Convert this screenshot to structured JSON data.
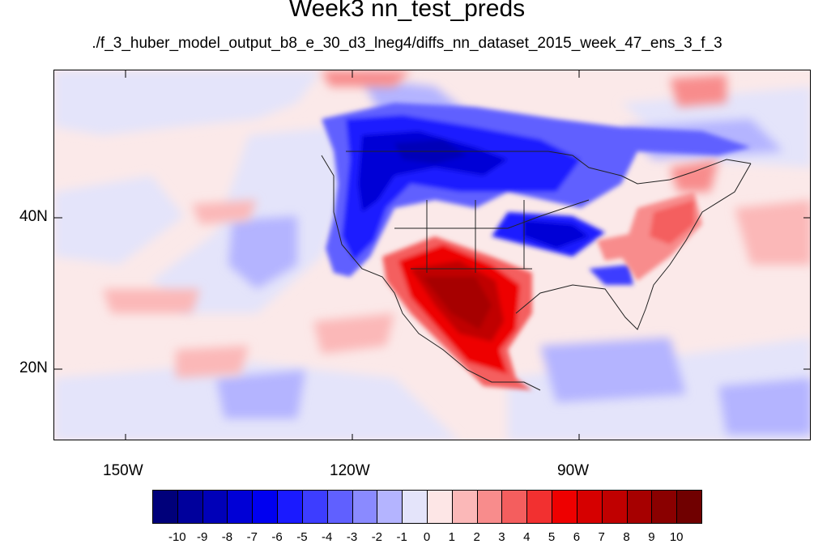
{
  "title": "Week3 nn_test_preds",
  "subtitle": "./f_3_huber_model_output_b8_e_30_d3_lneg4/diffs_nn_dataset_2015_week_47_ens_3_f_3",
  "axes": {
    "lon_labels": [
      "150W",
      "120W",
      "90W"
    ],
    "lat_labels": [
      "40N",
      "20N"
    ]
  },
  "colorbar": {
    "labels": [
      "-10",
      "-9",
      "-8",
      "-7",
      "-6",
      "-5",
      "-4",
      "-3",
      "-2",
      "-1",
      "0",
      "1",
      "2",
      "3",
      "4",
      "5",
      "6",
      "7",
      "8",
      "9",
      "10"
    ],
    "colors": [
      "#00007a",
      "#00009c",
      "#0000b8",
      "#0000d6",
      "#0000f0",
      "#1a1aff",
      "#3d3dff",
      "#6060ff",
      "#8a8aff",
      "#b4b4ff",
      "#e4e4fa",
      "#fde6e6",
      "#fbb8b8",
      "#f88c8c",
      "#f45e5e",
      "#f23030",
      "#ee0000",
      "#d60000",
      "#c00000",
      "#a60000",
      "#8a0000",
      "#700000"
    ]
  }
}
